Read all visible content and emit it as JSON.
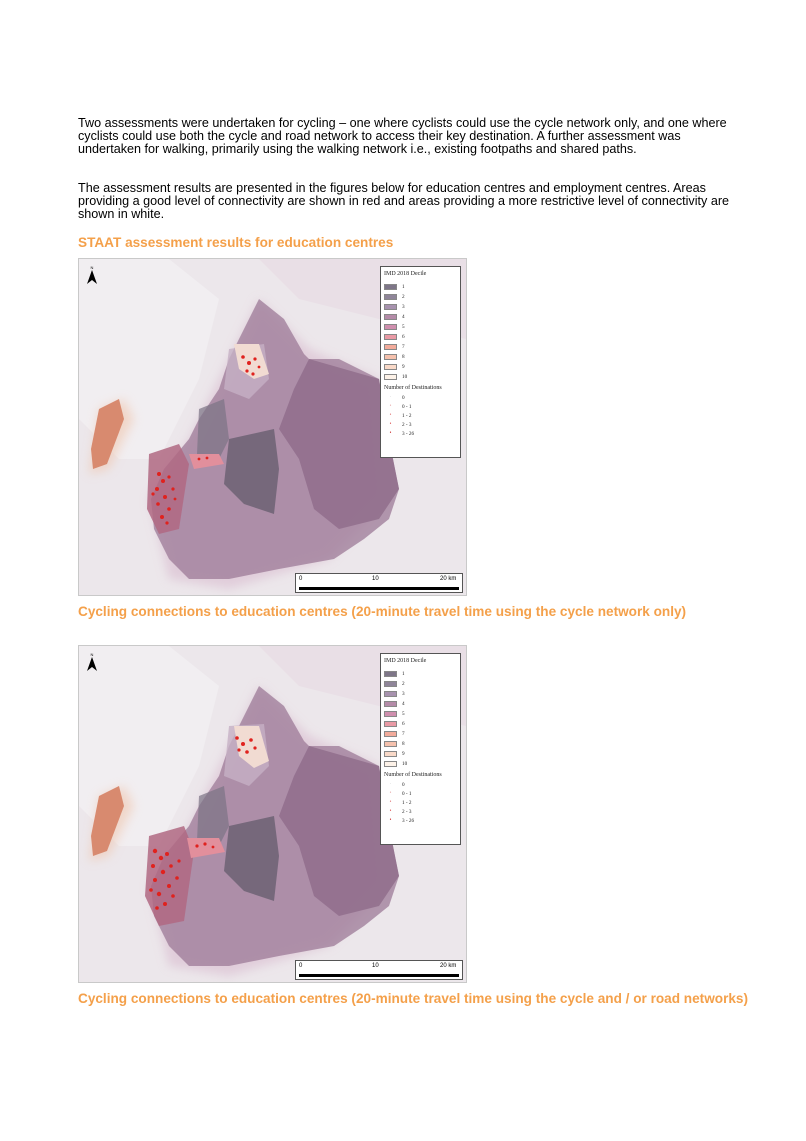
{
  "paragraphs": [
    "Two assessments were undertaken for cycling – one where cyclists could use the cycle network only, and one where cyclists could use both the cycle and road network to access their key destination. A further assessment was undertaken for walking, primarily using the walking network i.e., existing footpaths and shared paths.",
    "The assessment results are presented in the figures below for education centres and employment centres. Areas providing a good level of connectivity are shown in red and areas providing a more restrictive level of connectivity are shown in white."
  ],
  "section_heading": "STAAT assessment results for education centres",
  "figures": [
    {
      "caption": "Cycling connections to education centres (20-minute travel time using the cycle network only)",
      "legend": {
        "title": "IMD 2018 Decile",
        "deciles": [
          {
            "label": "1",
            "color": "#7e7688"
          },
          {
            "label": "2",
            "color": "#8f8599"
          },
          {
            "label": "3",
            "color": "#a792ae"
          },
          {
            "label": "4",
            "color": "#b48ba8"
          },
          {
            "label": "5",
            "color": "#cf8fae"
          },
          {
            "label": "6",
            "color": "#e99aa5"
          },
          {
            "label": "7",
            "color": "#f2ab9b"
          },
          {
            "label": "8",
            "color": "#f5c1ad"
          },
          {
            "label": "9",
            "color": "#f9d9c8"
          },
          {
            "label": "10",
            "color": "#fdf2e8"
          }
        ],
        "destinations_title": "Number of Destinations",
        "destinations": [
          "0",
          "0 - 1",
          "1 - 2",
          "2 - 3",
          "3 - 26"
        ]
      },
      "scale": {
        "labels": [
          "0",
          "10",
          "20 km"
        ]
      }
    },
    {
      "caption": "Cycling connections to education centres (20-minute travel time using the cycle and / or road networks)",
      "legend": {
        "title": "IMD 2018 Decile",
        "deciles": [
          {
            "label": "1",
            "color": "#7e7688"
          },
          {
            "label": "2",
            "color": "#8f8599"
          },
          {
            "label": "3",
            "color": "#a792ae"
          },
          {
            "label": "4",
            "color": "#b48ba8"
          },
          {
            "label": "5",
            "color": "#cf8fae"
          },
          {
            "label": "6",
            "color": "#e99aa5"
          },
          {
            "label": "7",
            "color": "#f2ab9b"
          },
          {
            "label": "8",
            "color": "#f5c1ad"
          },
          {
            "label": "9",
            "color": "#f9d9c8"
          },
          {
            "label": "10",
            "color": "#fdf2e8"
          }
        ],
        "destinations_title": "Number of Destinations",
        "destinations": [
          "0",
          "0 - 1",
          "1 - 2",
          "2 - 3",
          "3 - 26"
        ]
      },
      "scale": {
        "labels": [
          "0",
          "10",
          "20 km"
        ]
      }
    }
  ],
  "icons": {
    "north_arrow": "north-arrow-icon",
    "north_letter": "N"
  },
  "colors": {
    "heading": "#f4a04a",
    "connectivity_dots": "#e0221e"
  }
}
